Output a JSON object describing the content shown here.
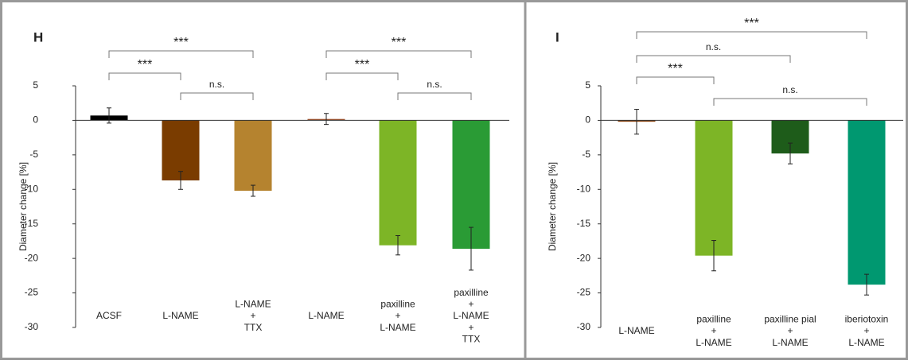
{
  "chart_data": [
    {
      "type": "bar",
      "label": "H",
      "ylabel": "Diameter change [%]",
      "categories": [
        [
          "ACSF"
        ],
        [
          "L-NAME"
        ],
        [
          "L-NAME",
          "+",
          "TTX"
        ],
        [
          "L-NAME"
        ],
        [
          "paxilline",
          "+",
          "L-NAME"
        ],
        [
          "paxilline",
          "+",
          "L-NAME",
          "+",
          "TTX"
        ]
      ],
      "series": [
        {
          "values": [
            0.7,
            -8.7,
            -10.2,
            0.2,
            -18.1,
            -18.6
          ],
          "errors": [
            1.1,
            1.3,
            0.8,
            0.8,
            1.4,
            3.1
          ],
          "colors": [
            "#000000",
            "#7a3c00",
            "#b5832f",
            "#a0522d",
            "#7db526",
            "#2a9b35"
          ]
        }
      ],
      "ylim": [
        -30,
        5
      ],
      "yticks": [
        5,
        0,
        -5,
        -10,
        -15,
        -20,
        -25,
        -30
      ],
      "brackets": [
        {
          "label": "***",
          "from": 0,
          "to": 2
        },
        {
          "label": "***",
          "from": 0,
          "to": 1
        },
        {
          "label": "n.s.",
          "from": 1,
          "to": 2
        },
        {
          "label": "***",
          "from": 3,
          "to": 5
        },
        {
          "label": "***",
          "from": 3,
          "to": 4
        },
        {
          "label": "n.s.",
          "from": 4,
          "to": 5
        }
      ]
    },
    {
      "type": "bar",
      "label": "I",
      "ylabel": "Diameter change [%]",
      "categories": [
        [
          "L-NAME"
        ],
        [
          "paxilline",
          "+",
          "L-NAME"
        ],
        [
          "paxilline pial",
          "+",
          "L-NAME"
        ],
        [
          "iberiotoxin",
          "+",
          "L-NAME"
        ]
      ],
      "series": [
        {
          "values": [
            -0.2,
            -19.6,
            -4.8,
            -23.8
          ],
          "errors": [
            1.8,
            2.2,
            1.5,
            1.5
          ],
          "colors": [
            "#8b4513",
            "#7db526",
            "#1e5c1a",
            "#009870"
          ]
        }
      ],
      "ylim": [
        -30,
        5
      ],
      "yticks": [
        5,
        0,
        -5,
        -10,
        -15,
        -20,
        -25,
        -30
      ],
      "brackets": [
        {
          "label": "***",
          "from": 0,
          "to": 3
        },
        {
          "label": "n.s.",
          "from": 0,
          "to": 2
        },
        {
          "label": "***",
          "from": 0,
          "to": 1
        },
        {
          "label": "n.s.",
          "from": 1,
          "to": 3
        }
      ]
    }
  ]
}
